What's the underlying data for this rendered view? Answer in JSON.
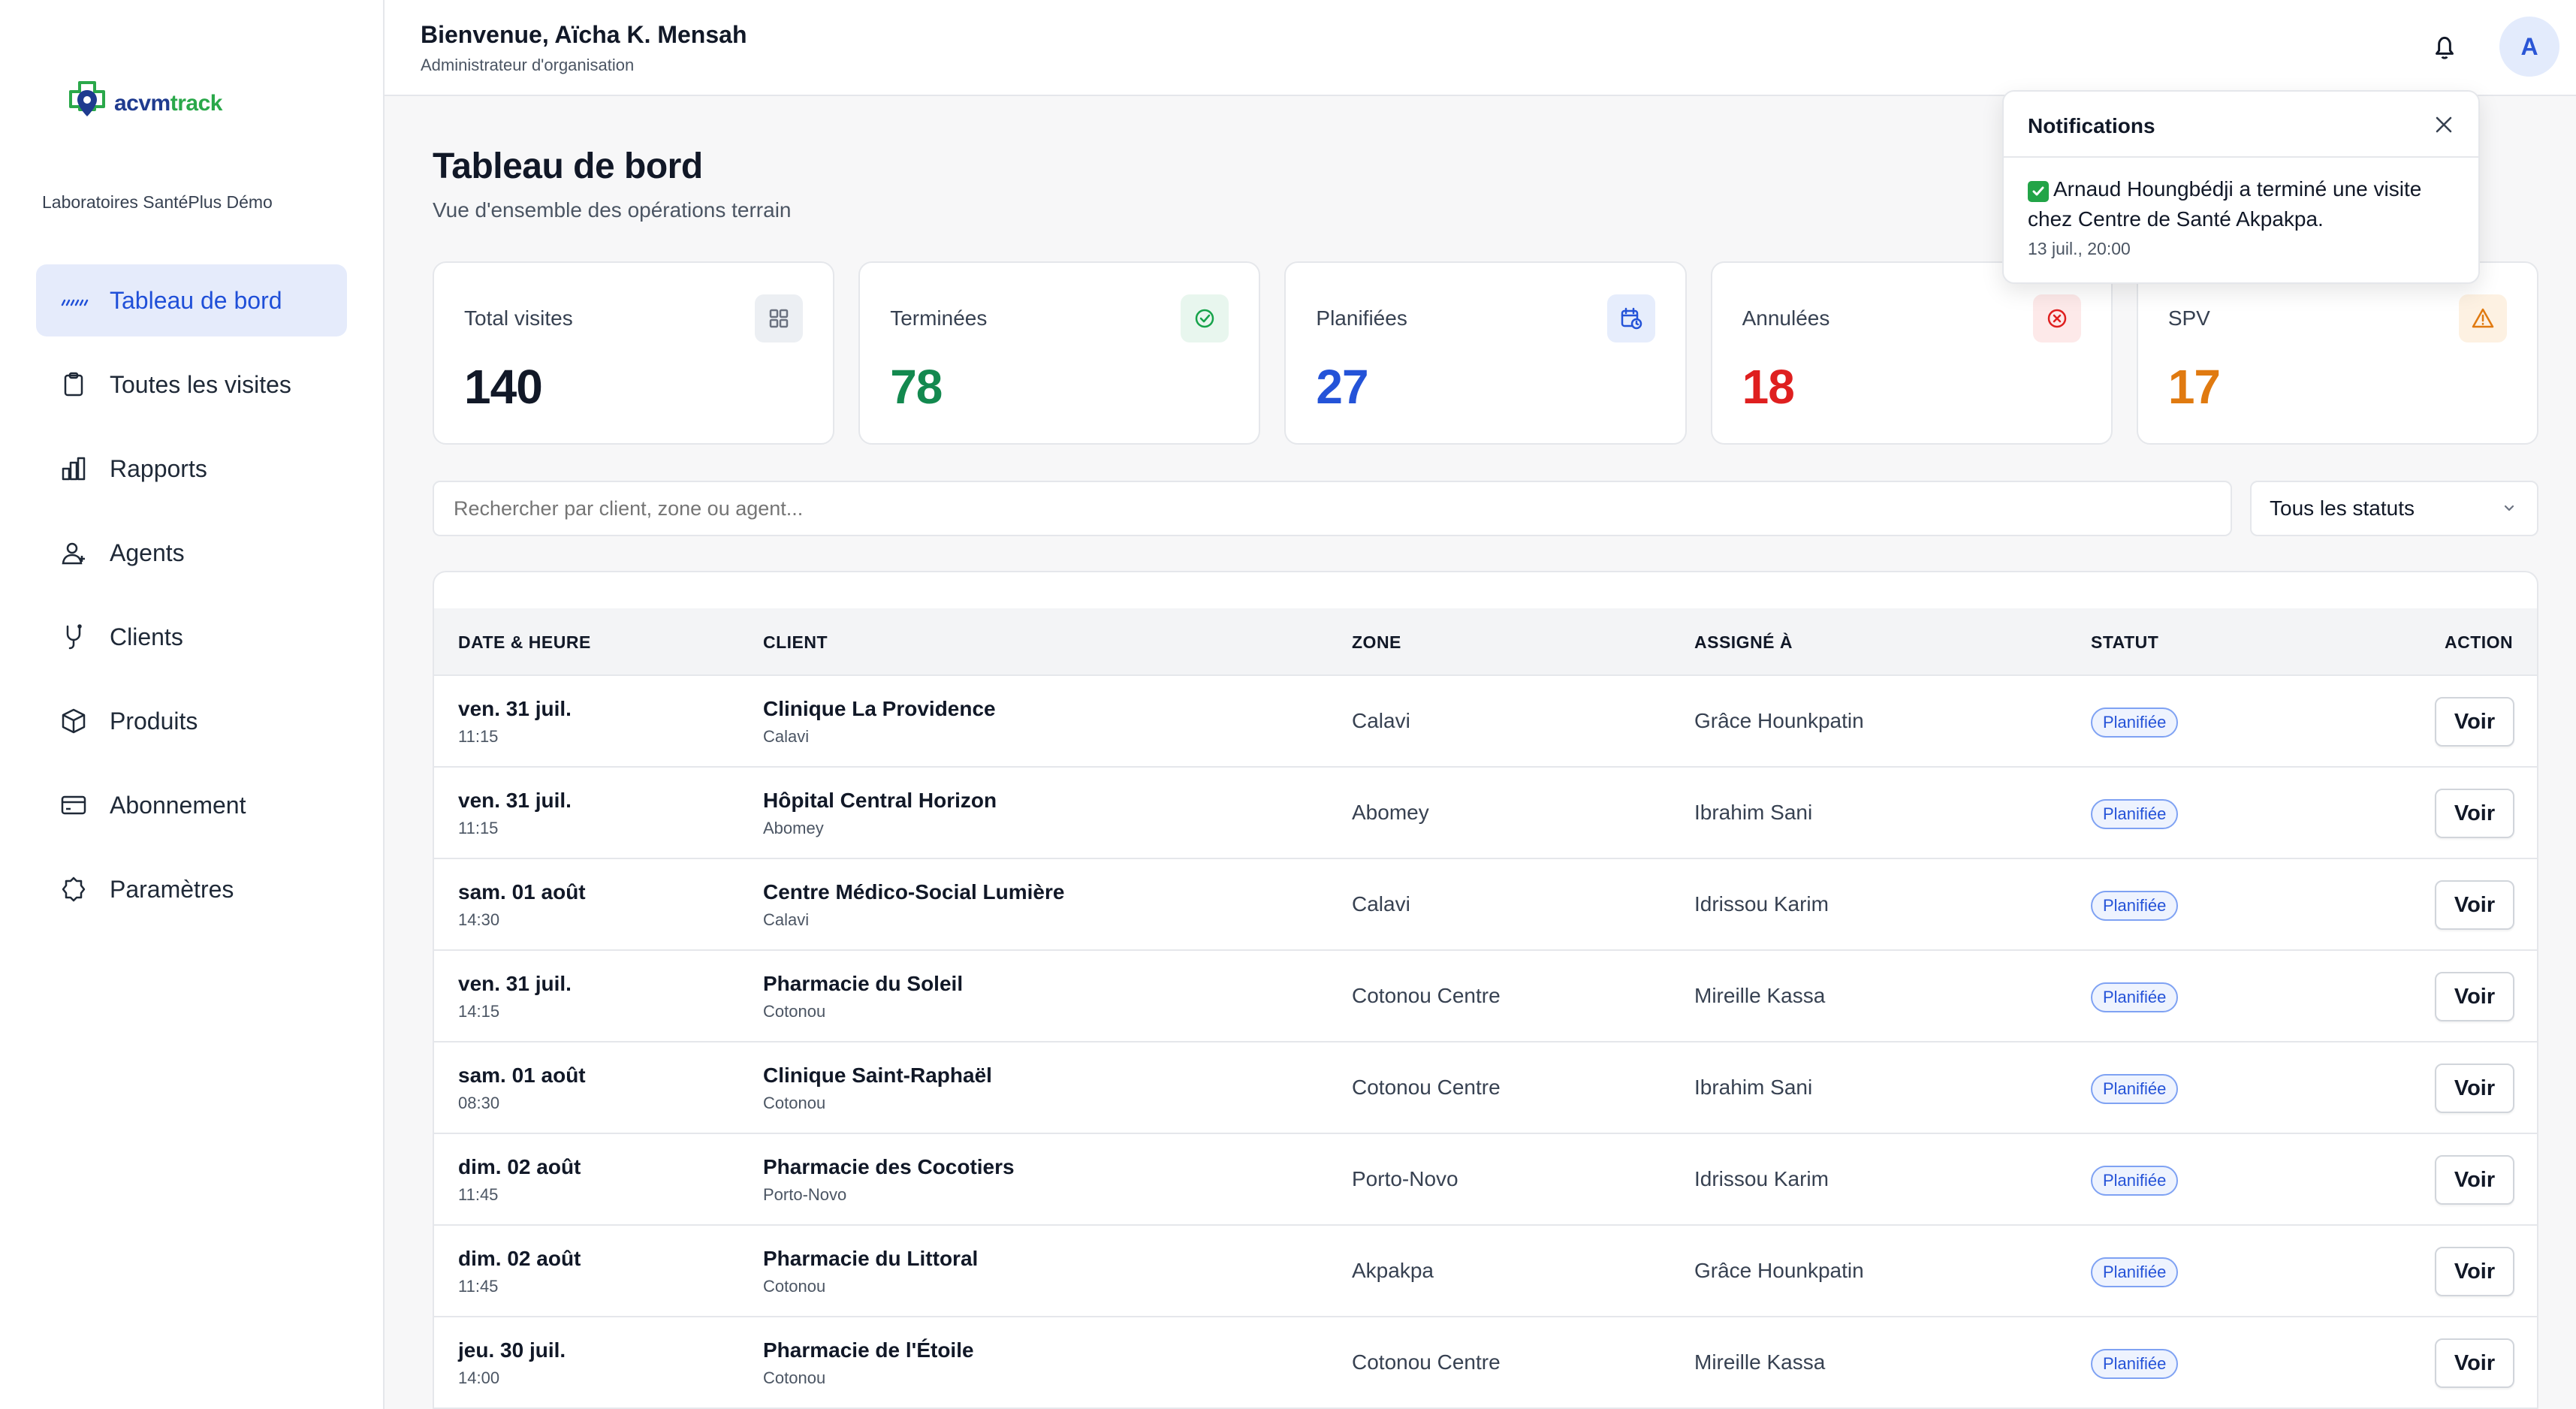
{
  "brand": {
    "name_part1": "acvm",
    "name_part2": "track"
  },
  "org": {
    "name": "Laboratoires SantéPlus Démo"
  },
  "sidebar": {
    "items": [
      {
        "label": "Tableau de bord",
        "icon": "dashboard-icon",
        "active": true
      },
      {
        "label": "Toutes les visites",
        "icon": "clipboard-icon"
      },
      {
        "label": "Rapports",
        "icon": "bar-chart-icon"
      },
      {
        "label": "Agents",
        "icon": "user-icon"
      },
      {
        "label": "Clients",
        "icon": "stethoscope-icon"
      },
      {
        "label": "Produits",
        "icon": "box-icon"
      },
      {
        "label": "Abonnement",
        "icon": "credit-card-icon"
      },
      {
        "label": "Paramètres",
        "icon": "gear-icon"
      }
    ]
  },
  "header": {
    "welcome": "Bienvenue, Aïcha K. Mensah",
    "role": "Administrateur d'organisation",
    "avatar_initial": "A"
  },
  "page": {
    "title": "Tableau de bord",
    "subtitle": "Vue d'ensemble des opérations terrain"
  },
  "stats": [
    {
      "label": "Total visites",
      "value": "140",
      "color": "#111827",
      "icon": "grid-icon",
      "icon_bg": "#eceff3",
      "icon_color": "#6b7280"
    },
    {
      "label": "Terminées",
      "value": "78",
      "color": "#13894f",
      "icon": "check-circle-icon",
      "icon_bg": "#e8f6ee",
      "icon_color": "#16a34a"
    },
    {
      "label": "Planifiées",
      "value": "27",
      "color": "#2453d8",
      "icon": "calendar-clock-icon",
      "icon_bg": "#e6edfc",
      "icon_color": "#2453d8"
    },
    {
      "label": "Annulées",
      "value": "18",
      "color": "#df1f1f",
      "icon": "x-circle-icon",
      "icon_bg": "#fde9e9",
      "icon_color": "#df1f1f"
    },
    {
      "label": "SPV",
      "value": "17",
      "color": "#e07a10",
      "icon": "warning-icon",
      "icon_bg": "#fdf1e2",
      "icon_color": "#e07a10"
    }
  ],
  "search": {
    "placeholder": "Rechercher par client, zone ou agent..."
  },
  "status_filter": {
    "selected": "Tous les statuts"
  },
  "table": {
    "headers": [
      "DATE & HEURE",
      "CLIENT",
      "ZONE",
      "ASSIGNÉ À",
      "STATUT",
      "ACTION"
    ],
    "rows": [
      {
        "date": "ven. 31 juil.",
        "time": "11:15",
        "client": "Clinique La Providence",
        "city": "Calavi",
        "zone": "Calavi",
        "agent": "Grâce Hounkpatin",
        "status": "Planifiée",
        "action": "Voir"
      },
      {
        "date": "ven. 31 juil.",
        "time": "11:15",
        "client": "Hôpital Central Horizon",
        "city": "Abomey",
        "zone": "Abomey",
        "agent": "Ibrahim Sani",
        "status": "Planifiée",
        "action": "Voir"
      },
      {
        "date": "sam. 01 août",
        "time": "14:30",
        "client": "Centre Médico-Social Lumière",
        "city": "Calavi",
        "zone": "Calavi",
        "agent": "Idrissou Karim",
        "status": "Planifiée",
        "action": "Voir"
      },
      {
        "date": "ven. 31 juil.",
        "time": "14:15",
        "client": "Pharmacie du Soleil",
        "city": "Cotonou",
        "zone": "Cotonou Centre",
        "agent": "Mireille Kassa",
        "status": "Planifiée",
        "action": "Voir"
      },
      {
        "date": "sam. 01 août",
        "time": "08:30",
        "client": "Clinique Saint-Raphaël",
        "city": "Cotonou",
        "zone": "Cotonou Centre",
        "agent": "Ibrahim Sani",
        "status": "Planifiée",
        "action": "Voir"
      },
      {
        "date": "dim. 02 août",
        "time": "11:45",
        "client": "Pharmacie des Cocotiers",
        "city": "Porto-Novo",
        "zone": "Porto-Novo",
        "agent": "Idrissou Karim",
        "status": "Planifiée",
        "action": "Voir"
      },
      {
        "date": "dim. 02 août",
        "time": "11:45",
        "client": "Pharmacie du Littoral",
        "city": "Cotonou",
        "zone": "Akpakpa",
        "agent": "Grâce Hounkpatin",
        "status": "Planifiée",
        "action": "Voir"
      },
      {
        "date": "jeu. 30 juil.",
        "time": "14:00",
        "client": "Pharmacie de l'Étoile",
        "city": "Cotonou",
        "zone": "Cotonou Centre",
        "agent": "Mireille Kassa",
        "status": "Planifiée",
        "action": "Voir"
      }
    ]
  },
  "notifications": {
    "title": "Notifications",
    "items": [
      {
        "message": "Arnaud Houngbédji a terminé une visite chez Centre de Santé Akpakpa.",
        "time": "13 juil., 20:00"
      }
    ]
  }
}
